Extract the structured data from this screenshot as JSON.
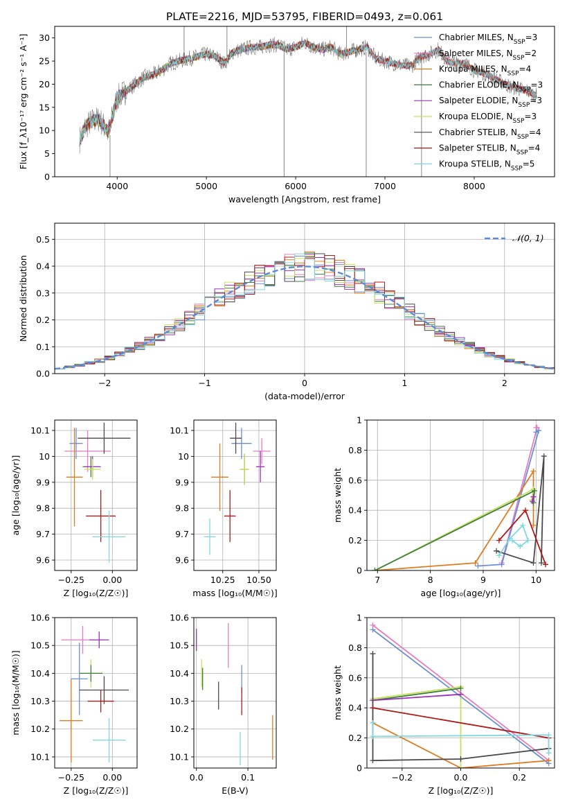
{
  "figure_title": "PLATE=2216, MJD=53795, FIBERID=0493, z=0.061",
  "model_colors": {
    "Chabrier MILES": "#6b8fd6",
    "Salpeter MILES": "#e87bc0",
    "Kroupa MILES": "#e07b1f",
    "Chabrier ELODIE": "#3e7f3e",
    "Salpeter ELODIE": "#9b30b8",
    "Kroupa ELODIE": "#c8e060",
    "Chabrier STELIB": "#4a4a4a",
    "Salpeter STELIB": "#b01818",
    "Kroupa STELIB": "#7fd8e0"
  },
  "chart_data": [
    {
      "id": "spectrum",
      "type": "line",
      "title": "PLATE=2216, MJD=53795, FIBERID=0493, z=0.061",
      "xlabel": "wavelength [Angstrom, rest frame]",
      "ylabel": "Flux [f_λ10⁻¹⁷ erg cm⁻² s⁻¹ A⁻¹]",
      "xlim": [
        3300,
        8900
      ],
      "ylim": [
        0,
        32.5
      ],
      "xticks": [
        4000,
        5000,
        6000,
        7000,
        8000
      ],
      "yticks": [
        0,
        5,
        10,
        15,
        20,
        25,
        30
      ],
      "grid": false,
      "legend_position": "right",
      "continuum": {
        "x": [
          3580,
          3650,
          3720,
          3800,
          3900,
          4000,
          4100,
          4200,
          4300,
          4400,
          4500,
          4600,
          4700,
          4800,
          4900,
          5000,
          5100,
          5200,
          5300,
          5400,
          5500,
          5600,
          5700,
          5800,
          5900,
          6000,
          6100,
          6200,
          6300,
          6400,
          6500,
          6600,
          6700,
          6800,
          6900,
          7000,
          7100,
          7200,
          7300,
          7400,
          7500,
          7600,
          7700,
          7800,
          7900,
          8000,
          8100,
          8200,
          8300,
          8400,
          8500,
          8600,
          8700
        ],
        "y": [
          8,
          11,
          12,
          12.5,
          9.5,
          17,
          18.5,
          20,
          21.5,
          22,
          23,
          24.5,
          25,
          25.5,
          26,
          26.5,
          26,
          24.5,
          27,
          27.5,
          28,
          28,
          28.5,
          28.5,
          27.5,
          28,
          29,
          28,
          27.5,
          28,
          26.5,
          27,
          27.5,
          28,
          25.5,
          25,
          24.5,
          24,
          24,
          26,
          26.5,
          27.5,
          25,
          24.5,
          24.5,
          23,
          22.5,
          21.5,
          20.5,
          19.5,
          19,
          18.5,
          17.5
        ]
      },
      "series": [
        {
          "name": "Chabrier MILES, N_SSP=3",
          "label_main": "Chabrier MILES, N",
          "label_sub": "SSP",
          "label_end": "=3",
          "xmax": 8700
        },
        {
          "name": "Salpeter MILES, N_SSP=2",
          "label_main": "Salpeter MILES, N",
          "label_sub": "SSP",
          "label_end": "=2",
          "xmax": 8700
        },
        {
          "name": "Kroupa MILES, N_SSP=4",
          "label_main": "Kroupa MILES, N",
          "label_sub": "SSP",
          "label_end": "=4",
          "xmax": 8700
        },
        {
          "name": "Chabrier ELODIE, N_SSP=3",
          "label_main": "Chabrier ELODIE, N",
          "label_sub": "SSP",
          "label_end": "=3",
          "xmax": 6800
        },
        {
          "name": "Salpeter ELODIE, N_SSP=3",
          "label_main": "Salpeter ELODIE, N",
          "label_sub": "SSP",
          "label_end": "=3",
          "xmax": 6800
        },
        {
          "name": "Kroupa ELODIE, N_SSP=3",
          "label_main": "Kroupa ELODIE, N",
          "label_sub": "SSP",
          "label_end": "=3",
          "xmax": 6800
        },
        {
          "name": "Chabrier STELIB, N_SSP=4",
          "label_main": "Chabrier STELIB, N",
          "label_sub": "SSP",
          "label_end": "=4",
          "xmax": 8700
        },
        {
          "name": "Salpeter STELIB, N_SSP=4",
          "label_main": "Salpeter STELIB, N",
          "label_sub": "SSP",
          "label_end": "=4",
          "xmax": 8700
        },
        {
          "name": "Kroupa STELIB, N_SSP=5",
          "label_main": "Kroupa STELIB, N",
          "label_sub": "SSP",
          "label_end": "=5",
          "xmax": 8700
        }
      ],
      "data_spikes": [
        {
          "x": 3920,
          "y0": 0,
          "y1": 9
        },
        {
          "x": 4750,
          "y0": 25,
          "y1": 32.5
        },
        {
          "x": 5230,
          "y0": 25,
          "y1": 32.5
        },
        {
          "x": 5870,
          "y0": 0,
          "y1": 28.5
        },
        {
          "x": 6570,
          "y0": 26,
          "y1": 32.5
        },
        {
          "x": 6790,
          "y0": 0,
          "y1": 27
        },
        {
          "x": 7410,
          "y0": 0,
          "y1": 25
        }
      ]
    },
    {
      "id": "residual-histogram",
      "type": "line",
      "xlabel": "(data-model)/error",
      "ylabel": "Normed distribution",
      "xlim": [
        -2.5,
        2.5
      ],
      "ylim": [
        0,
        0.56
      ],
      "xticks": [
        -2,
        -1,
        0,
        1,
        2
      ],
      "xtick_labels": [
        "−2",
        "−1",
        "0",
        "1",
        "2"
      ],
      "yticks": [
        0.0,
        0.1,
        0.2,
        0.3,
        0.4,
        0.5
      ],
      "ytick_labels": [
        "0.0",
        "0.1",
        "0.2",
        "0.3",
        "0.4",
        "0.5"
      ],
      "grid": true,
      "legend_position": "upper right",
      "reference_curve": {
        "name": "𝒩(0, 1)",
        "type": "normal",
        "mean": 0,
        "sigma": 1,
        "color": "#5b8ad9"
      },
      "bin_width": 0.1,
      "bin_start": -2.5
    },
    {
      "id": "age-vs-metallicity",
      "type": "scatter",
      "xlabel": "Z [log₁₀(Z/Z☉)]",
      "ylabel": "age  [log₁₀(age/yr)]",
      "xlim": [
        -0.35,
        0.15
      ],
      "ylim": [
        9.56,
        10.14
      ],
      "xticks": [
        -0.25,
        0.0
      ],
      "xtick_labels": [
        "−0.25",
        "0.00"
      ],
      "yticks": [
        9.6,
        9.7,
        9.8,
        9.9,
        10.0,
        10.1
      ],
      "grid": true,
      "points": [
        {
          "model": "Chabrier MILES",
          "x": -0.22,
          "xerr": 0.04,
          "y": 10.05,
          "yerr": 0.06
        },
        {
          "model": "Salpeter MILES",
          "x": -0.15,
          "xerr": 0.14,
          "y": 10.02,
          "yerr": 0.08
        },
        {
          "model": "Kroupa MILES",
          "x": -0.23,
          "xerr": 0.05,
          "y": 9.92,
          "yerr": 0.19
        },
        {
          "model": "Chabrier ELODIE",
          "x": -0.13,
          "xerr": 0.05,
          "y": 9.96,
          "yerr": 0.04
        },
        {
          "model": "Salpeter ELODIE",
          "x": -0.12,
          "xerr": 0.05,
          "y": 9.96,
          "yerr": 0.04
        },
        {
          "model": "Kroupa ELODIE",
          "x": -0.12,
          "xerr": 0.05,
          "y": 9.95,
          "yerr": 0.04
        },
        {
          "model": "Chabrier STELIB",
          "x": -0.05,
          "xerr": 0.16,
          "y": 10.07,
          "yerr": 0.06
        },
        {
          "model": "Salpeter STELIB",
          "x": -0.07,
          "xerr": 0.09,
          "y": 9.77,
          "yerr": 0.1
        },
        {
          "model": "Kroupa STELIB",
          "x": -0.02,
          "xerr": 0.1,
          "y": 9.69,
          "yerr": 0.1
        }
      ]
    },
    {
      "id": "age-vs-mass",
      "type": "scatter",
      "xlabel": "mass [log₁₀(M/M☉)]",
      "ylabel": "",
      "xlim": [
        10.05,
        10.62
      ],
      "ylim": [
        9.56,
        10.14
      ],
      "xticks": [
        10.25,
        10.5
      ],
      "xtick_labels": [
        "10.25",
        "10.50"
      ],
      "yticks": [
        9.6,
        9.7,
        9.8,
        9.9,
        10.0,
        10.1
      ],
      "grid": true,
      "points": [
        {
          "model": "Chabrier MILES",
          "x": 10.38,
          "xerr": 0.07,
          "y": 10.05,
          "yerr": 0.06
        },
        {
          "model": "Salpeter MILES",
          "x": 10.52,
          "xerr": 0.06,
          "y": 10.02,
          "yerr": 0.05
        },
        {
          "model": "Kroupa MILES",
          "x": 10.23,
          "xerr": 0.06,
          "y": 9.92,
          "yerr": 0.13
        },
        {
          "model": "Chabrier ELODIE",
          "x": 10.4,
          "xerr": 0.03,
          "y": 9.95,
          "yerr": 0.06
        },
        {
          "model": "Salpeter ELODIE",
          "x": 10.51,
          "xerr": 0.03,
          "y": 9.96,
          "yerr": 0.06
        },
        {
          "model": "Kroupa ELODIE",
          "x": 10.4,
          "xerr": 0.03,
          "y": 9.95,
          "yerr": 0.06
        },
        {
          "model": "Chabrier STELIB",
          "x": 10.34,
          "xerr": 0.04,
          "y": 10.07,
          "yerr": 0.06
        },
        {
          "model": "Salpeter STELIB",
          "x": 10.3,
          "xerr": 0.04,
          "y": 9.77,
          "yerr": 0.1
        },
        {
          "model": "Kroupa STELIB",
          "x": 10.16,
          "xerr": 0.04,
          "y": 9.69,
          "yerr": 0.07
        }
      ]
    },
    {
      "id": "mass-weight-vs-age",
      "type": "line",
      "xlabel": "age  [log₁₀(age/yr)]",
      "ylabel": "mass weight",
      "xlim": [
        6.8,
        10.35
      ],
      "ylim": [
        0,
        1.0
      ],
      "xticks": [
        7,
        8,
        9,
        10
      ],
      "yticks": [
        0.0,
        0.2,
        0.4,
        0.6,
        0.8,
        1.0
      ],
      "grid": true,
      "series": [
        {
          "model": "Salpeter MILES",
          "x": [
            9.35,
            10.02,
            10.0
          ],
          "y": [
            0.05,
            0.95,
            0.95
          ]
        },
        {
          "model": "Chabrier MILES",
          "x": [
            8.9,
            9.35,
            10.05,
            10.0
          ],
          "y": [
            0.03,
            0.04,
            0.93,
            0.92
          ]
        },
        {
          "model": "Kroupa MILES",
          "x": [
            6.95,
            8.85,
            9.95,
            9.95
          ],
          "y": [
            0.0,
            0.05,
            0.66,
            0.3
          ]
        },
        {
          "model": "Kroupa ELODIE",
          "x": [
            6.95,
            9.95,
            9.92
          ],
          "y": [
            0.0,
            0.54,
            0.47
          ]
        },
        {
          "model": "Chabrier ELODIE",
          "x": [
            6.95,
            9.97,
            9.95
          ],
          "y": [
            0.0,
            0.53,
            0.45
          ]
        },
        {
          "model": "Salpeter ELODIE",
          "x": [
            9.95,
            9.93
          ],
          "y": [
            0.49,
            0.46
          ]
        },
        {
          "model": "Chabrier STELIB",
          "x": [
            9.25,
            9.95,
            10.15,
            10.1
          ],
          "y": [
            0.13,
            0.05,
            0.76,
            0.05
          ]
        },
        {
          "model": "Salpeter STELIB",
          "x": [
            9.3,
            9.8,
            10.18
          ],
          "y": [
            0.2,
            0.4,
            0.04
          ]
        },
        {
          "model": "Kroupa STELIB",
          "x": [
            9.3,
            9.5,
            9.75,
            9.85,
            9.7,
            9.55
          ],
          "y": [
            0.1,
            0.21,
            0.3,
            0.2,
            0.16,
            0.2
          ]
        }
      ]
    },
    {
      "id": "mass-vs-metallicity",
      "type": "scatter",
      "xlabel": "Z [log₁₀(Z/Z☉)]",
      "ylabel": "mass [log₁₀(M/M☉)]",
      "xlim": [
        -0.35,
        0.15
      ],
      "ylim": [
        10.06,
        10.6
      ],
      "xticks": [
        -0.25,
        0.0
      ],
      "xtick_labels": [
        "−0.25",
        "0.00"
      ],
      "yticks": [
        10.1,
        10.2,
        10.3,
        10.4,
        10.5,
        10.6
      ],
      "grid": true,
      "points": [
        {
          "model": "Salpeter MILES",
          "x": -0.18,
          "xerr": 0.13,
          "y": 10.52,
          "yerr": 0.05
        },
        {
          "model": "Salpeter ELODIE",
          "x": -0.08,
          "xerr": 0.06,
          "y": 10.52,
          "yerr": 0.03
        },
        {
          "model": "Kroupa ELODIE",
          "x": -0.13,
          "xerr": 0.07,
          "y": 10.4,
          "yerr": 0.05
        },
        {
          "model": "Chabrier ELODIE",
          "x": -0.13,
          "xerr": 0.07,
          "y": 10.4,
          "yerr": 0.03
        },
        {
          "model": "Chabrier MILES",
          "x": -0.2,
          "xerr": 0.05,
          "y": 10.38,
          "yerr": 0.13
        },
        {
          "model": "Chabrier STELIB",
          "x": -0.05,
          "xerr": 0.15,
          "y": 10.34,
          "yerr": 0.05
        },
        {
          "model": "Salpeter STELIB",
          "x": -0.07,
          "xerr": 0.08,
          "y": 10.3,
          "yerr": 0.04
        },
        {
          "model": "Kroupa MILES",
          "x": -0.25,
          "xerr": 0.07,
          "y": 10.23,
          "yerr": 0.15
        },
        {
          "model": "Kroupa STELIB",
          "x": -0.02,
          "xerr": 0.1,
          "y": 10.16,
          "yerr": 0.08
        }
      ]
    },
    {
      "id": "mass-vs-extinction",
      "type": "scatter",
      "xlabel": "E(B-V)",
      "ylabel": "",
      "xlim": [
        -0.005,
        0.155
      ],
      "ylim": [
        10.06,
        10.6
      ],
      "xticks": [
        0.0,
        0.1
      ],
      "xtick_labels": [
        "0.0",
        "0.1"
      ],
      "yticks": [
        10.1,
        10.2,
        10.3,
        10.4,
        10.5,
        10.6
      ],
      "grid": true,
      "points": [
        {
          "model": "Salpeter ELODIE",
          "x": 0.0,
          "y": 10.52,
          "yerr": 0.04
        },
        {
          "model": "Kroupa ELODIE",
          "x": 0.01,
          "y": 10.4,
          "yerr": 0.05
        },
        {
          "model": "Chabrier ELODIE",
          "x": 0.012,
          "y": 10.38,
          "yerr": 0.04
        },
        {
          "model": "Salpeter MILES",
          "x": 0.062,
          "y": 10.5,
          "yerr": 0.08
        },
        {
          "model": "Chabrier STELIB",
          "x": 0.043,
          "y": 10.32,
          "yerr": 0.05
        },
        {
          "model": "Chabrier MILES",
          "x": 0.088,
          "y": 10.38,
          "yerr": 0.05
        },
        {
          "model": "Salpeter STELIB",
          "x": 0.088,
          "y": 10.3,
          "yerr": 0.05
        },
        {
          "model": "Kroupa STELIB",
          "x": 0.085,
          "y": 10.13,
          "yerr": 0.06
        },
        {
          "model": "Kroupa MILES",
          "x": 0.148,
          "y": 10.17,
          "yerr": 0.08
        }
      ]
    },
    {
      "id": "mass-weight-vs-metallicity",
      "type": "line",
      "xlabel": "Z [log₁₀(Z/Z☉)]",
      "ylabel": "mass weight",
      "xlim": [
        -0.32,
        0.32
      ],
      "ylim": [
        0,
        1.0
      ],
      "xticks": [
        -0.2,
        0.0,
        0.2
      ],
      "xtick_labels": [
        "−0.2",
        "0.0",
        "0.2"
      ],
      "yticks": [
        0.0,
        0.2,
        0.4,
        0.6,
        0.8,
        1.0
      ],
      "grid": true,
      "series": [
        {
          "model": "Salpeter MILES",
          "x": [
            -0.3,
            0.3
          ],
          "y": [
            0.95,
            0.05
          ]
        },
        {
          "model": "Chabrier MILES",
          "x": [
            -0.3,
            0.3
          ],
          "y": [
            0.92,
            0.03
          ]
        },
        {
          "model": "Kroupa MILES",
          "x": [
            -0.3,
            0.0,
            0.3
          ],
          "y": [
            0.3,
            0.0,
            0.05
          ]
        },
        {
          "model": "Kroupa ELODIE",
          "x": [
            -0.3,
            0.0,
            0.0
          ],
          "y": [
            0.46,
            0.54,
            0.0
          ]
        },
        {
          "model": "Chabrier ELODIE",
          "x": [
            -0.3,
            0.0
          ],
          "y": [
            0.45,
            0.53
          ]
        },
        {
          "model": "Salpeter ELODIE",
          "x": [
            -0.3,
            0.0
          ],
          "y": [
            0.45,
            0.49
          ]
        },
        {
          "model": "Chabrier STELIB",
          "x": [
            -0.3,
            -0.3,
            0.0,
            0.3
          ],
          "y": [
            0.76,
            0.05,
            0.06,
            0.13
          ]
        },
        {
          "model": "Salpeter STELIB",
          "x": [
            -0.3,
            0.3
          ],
          "y": [
            0.4,
            0.2
          ]
        },
        {
          "model": "Kroupa STELIB",
          "x": [
            -0.3,
            -0.3,
            0.3,
            0.3
          ],
          "y": [
            0.3,
            0.21,
            0.22,
            0.1
          ]
        }
      ]
    }
  ]
}
